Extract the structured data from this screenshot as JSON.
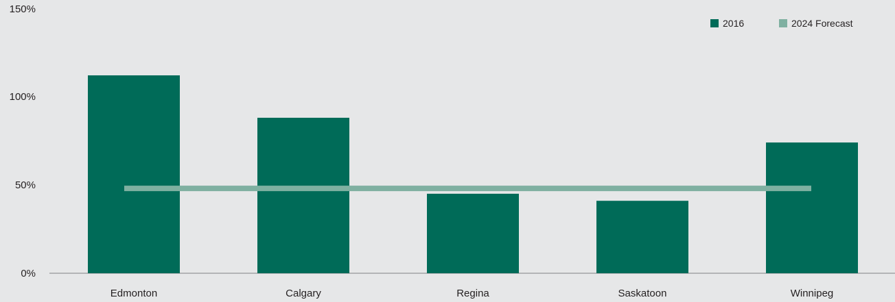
{
  "chart_data": {
    "type": "bar",
    "title": "",
    "xlabel": "",
    "ylabel": "",
    "categories": [
      "Edmonton",
      "Calgary",
      "Regina",
      "Saskatoon",
      "Winnipeg"
    ],
    "series": [
      {
        "name": "2016",
        "kind": "bar",
        "color": "#006b58",
        "values": [
          112,
          88,
          45,
          41,
          74
        ]
      },
      {
        "name": "2024 Forecast",
        "kind": "line",
        "color": "#7fb0a1",
        "values": [
          48,
          48,
          48,
          48,
          48
        ]
      }
    ],
    "ylim": [
      0,
      150
    ],
    "yticks": [
      0,
      50,
      100,
      150
    ],
    "ytick_labels": [
      "0%",
      "50%",
      "100%",
      "150%"
    ],
    "grid": false,
    "legend_position": "top-right"
  }
}
